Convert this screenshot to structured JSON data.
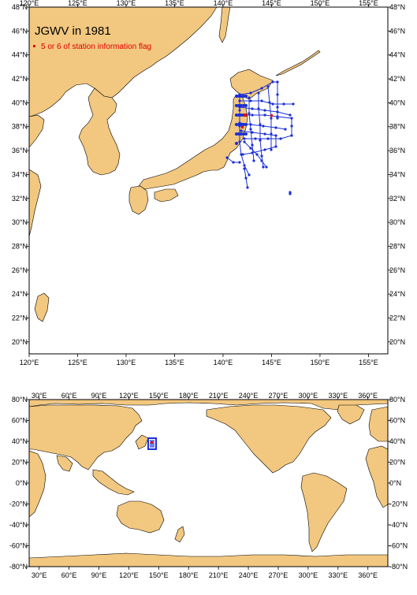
{
  "top_map": {
    "title": "JGWV in 1981",
    "legend_label": "5 or 6 of station information flag",
    "lon_ticks": [
      "120°E",
      "125°E",
      "130°E",
      "135°E",
      "140°E",
      "145°E",
      "150°E",
      "155°E"
    ],
    "lat_ticks": [
      "20°N",
      "22°N",
      "24°N",
      "26°N",
      "28°N",
      "30°N",
      "32°N",
      "34°N",
      "36°N",
      "38°N",
      "40°N",
      "42°N",
      "44°N",
      "46°N",
      "48°N"
    ],
    "lon_range": [
      120,
      157
    ],
    "lat_range": [
      19,
      48
    ]
  },
  "bottom_map": {
    "lon_ticks": [
      "30°E",
      "60°E",
      "90°E",
      "120°E",
      "150°E",
      "180°E",
      "210°E",
      "240°E",
      "270°E",
      "300°E",
      "330°E",
      "360°E"
    ],
    "lat_ticks": [
      "80°N",
      "60°N",
      "40°N",
      "20°N",
      "0°N",
      "-20°N",
      "-40°N",
      "-60°N",
      "-80°N"
    ],
    "lon_range": [
      20,
      380
    ],
    "lat_range": [
      -80,
      80
    ]
  },
  "colors": {
    "land": "#f2c77f",
    "track": "#1a2fd6",
    "flag": "#e00000",
    "frame": "#000000"
  }
}
